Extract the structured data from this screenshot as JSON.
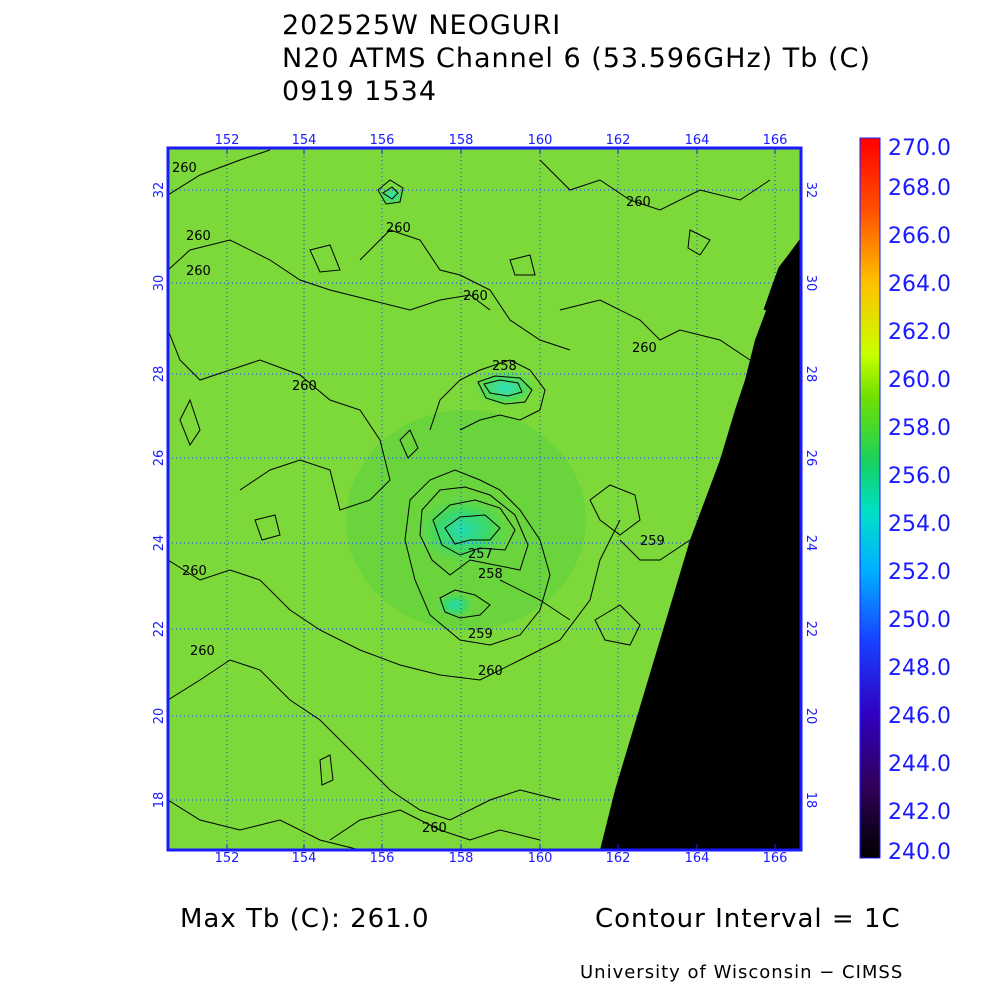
{
  "title": {
    "line1": "202525W NEOGURI",
    "line2": "N20 ATMS Channel 6 (53.596GHz) Tb (C)",
    "line3": "0919 1534"
  },
  "map": {
    "lon_ticks": [
      "152",
      "154",
      "156",
      "158",
      "160",
      "162",
      "164",
      "166"
    ],
    "lat_ticks": [
      "18",
      "20",
      "22",
      "24",
      "26",
      "28",
      "30",
      "32"
    ],
    "lon_range": [
      150.6,
      166.8
    ],
    "lat_range": [
      17.0,
      32.8
    ],
    "land_color": "#000000",
    "grid": "dotted",
    "frame_color": "#1a1aff"
  },
  "contour_labels": [
    "260",
    "260",
    "260",
    "260",
    "260",
    "260",
    "260",
    "260",
    "260",
    "258",
    "257",
    "258",
    "259",
    "259",
    "260",
    "260",
    "260"
  ],
  "colorbar": {
    "labels": [
      "270.0",
      "268.0",
      "266.0",
      "264.0",
      "262.0",
      "260.0",
      "258.0",
      "256.0",
      "254.0",
      "252.0",
      "250.0",
      "248.0",
      "246.0",
      "244.0",
      "242.0",
      "240.0"
    ],
    "colors": [
      "#ff0000",
      "#ff6a00",
      "#ffd000",
      "#b8ff00",
      "#3cdc00",
      "#00e6a0",
      "#00d8ff",
      "#0050ff",
      "#2a00c8",
      "#3a0090",
      "#000000"
    ],
    "range": [
      240,
      270
    ]
  },
  "footer": {
    "max_tb": "Max Tb (C): 261.0",
    "contour_interval": "Contour Interval = 1C",
    "credit": "University of Wisconsin − CIMSS"
  }
}
